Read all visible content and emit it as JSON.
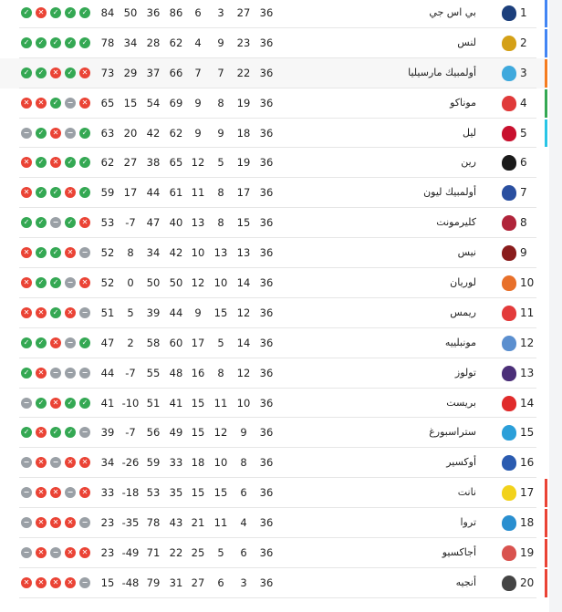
{
  "colors": {
    "win": "#34a853",
    "loss": "#ea4335",
    "draw": "#9aa0a6",
    "ucl": "#4285f4",
    "ucl_qual": "#f57c1f",
    "uel": "#34a853",
    "uecl": "#29c5e6",
    "relegation": "#ea4335"
  },
  "form_icons": {
    "W": "check-icon",
    "L": "x-icon",
    "D": "minus-icon"
  },
  "rows": [
    {
      "rank": "1",
      "team": "بي اس جي",
      "played": "36",
      "won": "27",
      "drawn": "3",
      "lost": "6",
      "gf": "86",
      "ga": "36",
      "gd": "50",
      "pts": "84",
      "form": [
        "W",
        "L",
        "W",
        "W",
        "W"
      ],
      "zone": "ucl",
      "logo": "#1c3f7c"
    },
    {
      "rank": "2",
      "team": "لنس",
      "played": "36",
      "won": "23",
      "drawn": "9",
      "lost": "4",
      "gf": "62",
      "ga": "28",
      "gd": "34",
      "pts": "78",
      "form": [
        "W",
        "W",
        "W",
        "W",
        "W"
      ],
      "zone": "ucl",
      "logo": "#d4a017"
    },
    {
      "rank": "3",
      "team": "أولمبيك مارسيليا",
      "played": "36",
      "won": "22",
      "drawn": "7",
      "lost": "7",
      "gf": "66",
      "ga": "37",
      "gd": "29",
      "pts": "73",
      "form": [
        "W",
        "W",
        "L",
        "W",
        "L"
      ],
      "zone": "ucl_qual",
      "logo": "#3fa9dd",
      "highlight": true
    },
    {
      "rank": "4",
      "team": "موناكو",
      "played": "36",
      "won": "19",
      "drawn": "8",
      "lost": "9",
      "gf": "69",
      "ga": "54",
      "gd": "15",
      "pts": "65",
      "form": [
        "L",
        "L",
        "W",
        "D",
        "L"
      ],
      "zone": "uel",
      "logo": "#e03a3a"
    },
    {
      "rank": "5",
      "team": "ليل",
      "played": "36",
      "won": "18",
      "drawn": "9",
      "lost": "9",
      "gf": "62",
      "ga": "42",
      "gd": "20",
      "pts": "63",
      "form": [
        "D",
        "W",
        "L",
        "D",
        "W"
      ],
      "zone": "uecl",
      "logo": "#c8102e"
    },
    {
      "rank": "6",
      "team": "رين",
      "played": "36",
      "won": "19",
      "drawn": "5",
      "lost": "12",
      "gf": "65",
      "ga": "38",
      "gd": "27",
      "pts": "62",
      "form": [
        "L",
        "W",
        "L",
        "W",
        "W"
      ],
      "logo": "#1a1a1a"
    },
    {
      "rank": "7",
      "team": "أولمبيك ليون",
      "played": "36",
      "won": "17",
      "drawn": "8",
      "lost": "11",
      "gf": "61",
      "ga": "44",
      "gd": "17",
      "pts": "59",
      "form": [
        "L",
        "W",
        "W",
        "L",
        "W"
      ],
      "logo": "#2a4fa0"
    },
    {
      "rank": "8",
      "team": "كليرمونت",
      "played": "36",
      "won": "15",
      "drawn": "8",
      "lost": "13",
      "gf": "40",
      "ga": "47",
      "gd": "-7",
      "pts": "53",
      "form": [
        "W",
        "W",
        "D",
        "W",
        "L"
      ],
      "logo": "#b0243a"
    },
    {
      "rank": "9",
      "team": "نيس",
      "played": "36",
      "won": "13",
      "drawn": "13",
      "lost": "10",
      "gf": "42",
      "ga": "34",
      "gd": "8",
      "pts": "52",
      "form": [
        "L",
        "W",
        "W",
        "L",
        "D"
      ],
      "logo": "#8a1c1c"
    },
    {
      "rank": "10",
      "team": "لوريان",
      "played": "36",
      "won": "14",
      "drawn": "10",
      "lost": "12",
      "gf": "50",
      "ga": "50",
      "gd": "0",
      "pts": "52",
      "form": [
        "L",
        "W",
        "W",
        "D",
        "L"
      ],
      "logo": "#e8702a"
    },
    {
      "rank": "11",
      "team": "ريمس",
      "played": "36",
      "won": "12",
      "drawn": "15",
      "lost": "9",
      "gf": "44",
      "ga": "39",
      "gd": "5",
      "pts": "51",
      "form": [
        "L",
        "L",
        "W",
        "L",
        "D"
      ],
      "logo": "#e33b3b"
    },
    {
      "rank": "12",
      "team": "مونبلييه",
      "played": "36",
      "won": "14",
      "drawn": "5",
      "lost": "17",
      "gf": "60",
      "ga": "58",
      "gd": "2",
      "pts": "47",
      "form": [
        "W",
        "W",
        "L",
        "D",
        "W"
      ],
      "logo": "#5b8fcf"
    },
    {
      "rank": "13",
      "team": "تولوز",
      "played": "36",
      "won": "12",
      "drawn": "8",
      "lost": "16",
      "gf": "48",
      "ga": "55",
      "gd": "-7",
      "pts": "44",
      "form": [
        "W",
        "L",
        "D",
        "D",
        "D"
      ],
      "logo": "#4b2f78"
    },
    {
      "rank": "14",
      "team": "بريست",
      "played": "36",
      "won": "10",
      "drawn": "11",
      "lost": "15",
      "gf": "41",
      "ga": "51",
      "gd": "-10",
      "pts": "41",
      "form": [
        "D",
        "W",
        "L",
        "W",
        "W"
      ],
      "logo": "#e02b2b"
    },
    {
      "rank": "15",
      "team": "ستراسبورغ",
      "played": "36",
      "won": "9",
      "drawn": "12",
      "lost": "15",
      "gf": "49",
      "ga": "56",
      "gd": "-7",
      "pts": "39",
      "form": [
        "W",
        "L",
        "W",
        "W",
        "D"
      ],
      "logo": "#2b9fd9"
    },
    {
      "rank": "16",
      "team": "أوكسير",
      "played": "36",
      "won": "8",
      "drawn": "10",
      "lost": "18",
      "gf": "33",
      "ga": "59",
      "gd": "-26",
      "pts": "34",
      "form": [
        "D",
        "L",
        "D",
        "L",
        "L"
      ],
      "logo": "#2a5bb0"
    },
    {
      "rank": "17",
      "team": "نانت",
      "played": "36",
      "won": "6",
      "drawn": "15",
      "lost": "15",
      "gf": "35",
      "ga": "53",
      "gd": "-18",
      "pts": "33",
      "form": [
        "D",
        "L",
        "L",
        "D",
        "L"
      ],
      "zone": "relegation",
      "logo": "#f2d21b"
    },
    {
      "rank": "18",
      "team": "تروا",
      "played": "36",
      "won": "4",
      "drawn": "11",
      "lost": "21",
      "gf": "43",
      "ga": "78",
      "gd": "-35",
      "pts": "23",
      "form": [
        "D",
        "L",
        "L",
        "L",
        "D"
      ],
      "zone": "relegation",
      "logo": "#2a8fd0"
    },
    {
      "rank": "19",
      "team": "أجاكسيو",
      "played": "36",
      "won": "6",
      "drawn": "5",
      "lost": "25",
      "gf": "22",
      "ga": "71",
      "gd": "-49",
      "pts": "23",
      "form": [
        "D",
        "L",
        "D",
        "L",
        "L"
      ],
      "zone": "relegation",
      "logo": "#d9534f"
    },
    {
      "rank": "20",
      "team": "أنجيه",
      "played": "36",
      "won": "3",
      "drawn": "6",
      "lost": "27",
      "gf": "31",
      "ga": "79",
      "gd": "-48",
      "pts": "15",
      "form": [
        "L",
        "L",
        "L",
        "L",
        "D"
      ],
      "zone": "relegation",
      "logo": "#444444"
    }
  ]
}
